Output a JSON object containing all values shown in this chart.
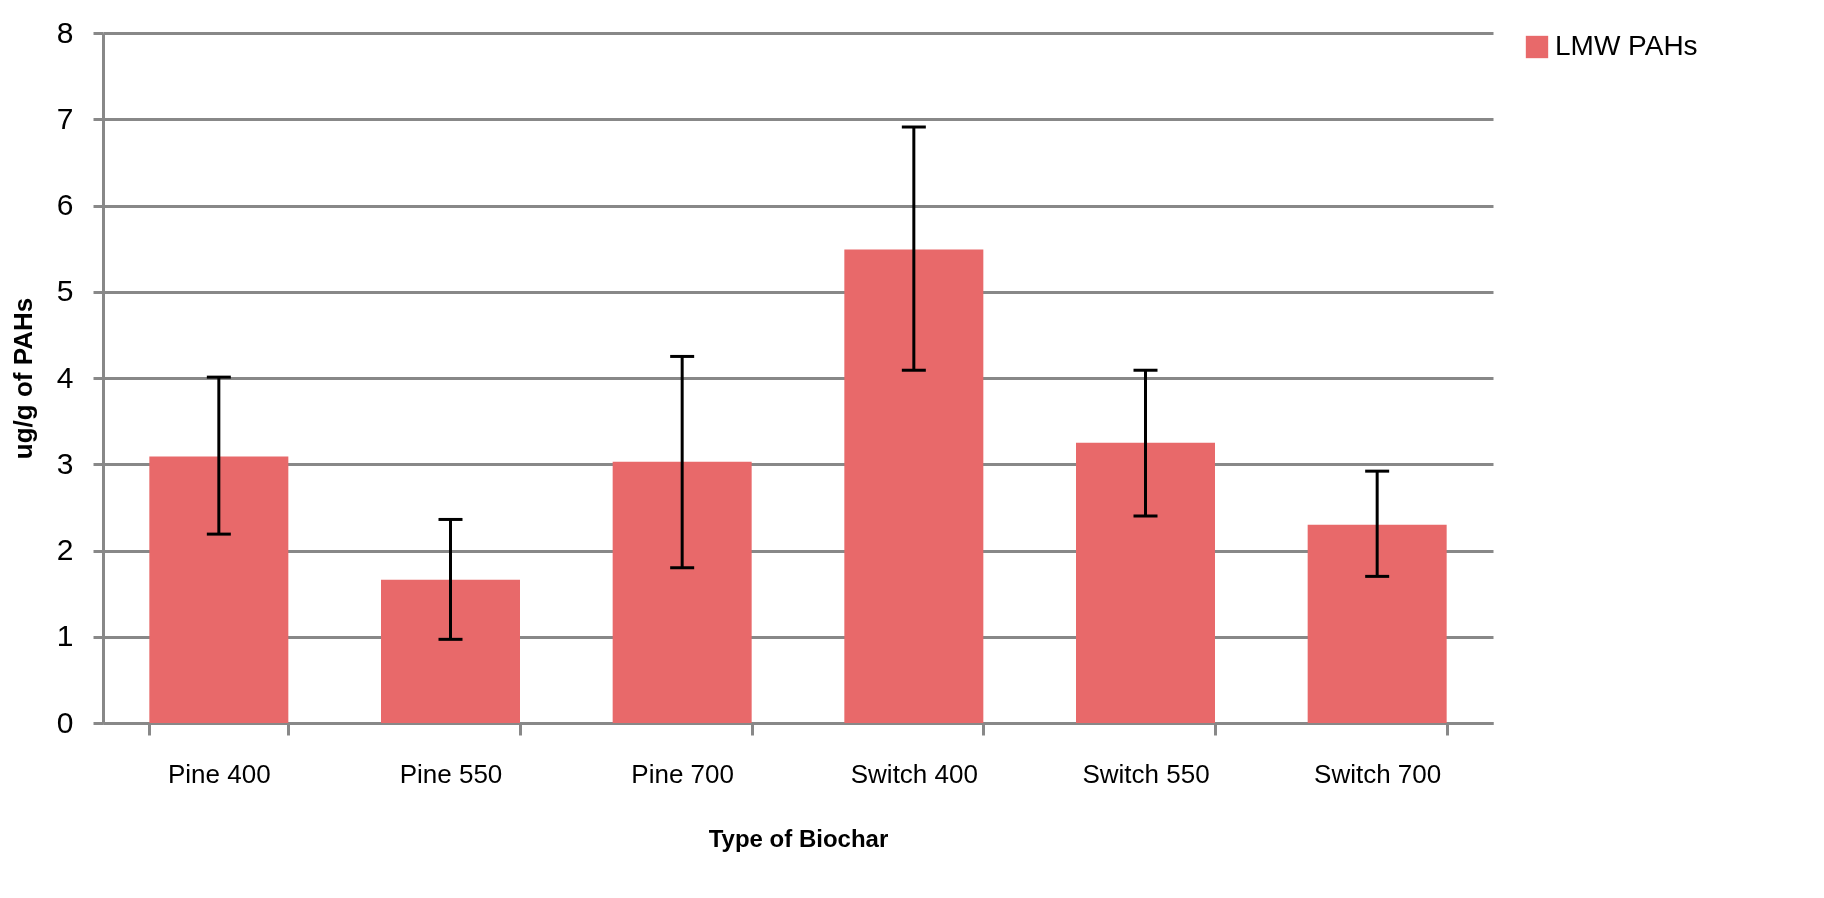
{
  "chart_data": {
    "type": "bar",
    "xlabel": "Type of Biochar",
    "ylabel": "ug/g of PAHs",
    "categories": [
      "Pine 400",
      "Pine 550",
      "Pine 700",
      "Switch 400",
      "Switch 550",
      "Switch 700"
    ],
    "series": [
      {
        "name": "LMW PAHs",
        "color": "#e8696a",
        "values": [
          3.09,
          1.66,
          3.03,
          5.49,
          3.25,
          2.3
        ],
        "errors": [
          [
            2.19,
            4.01
          ],
          [
            0.97,
            2.36
          ],
          [
            1.8,
            4.25
          ],
          [
            4.09,
            6.91
          ],
          [
            2.4,
            4.09
          ],
          [
            1.7,
            2.92
          ]
        ]
      }
    ],
    "ylim": [
      0,
      8
    ],
    "yticks": [
      0,
      1,
      2,
      3,
      4,
      5,
      6,
      7,
      8
    ],
    "grid": "y",
    "legend": "right"
  }
}
